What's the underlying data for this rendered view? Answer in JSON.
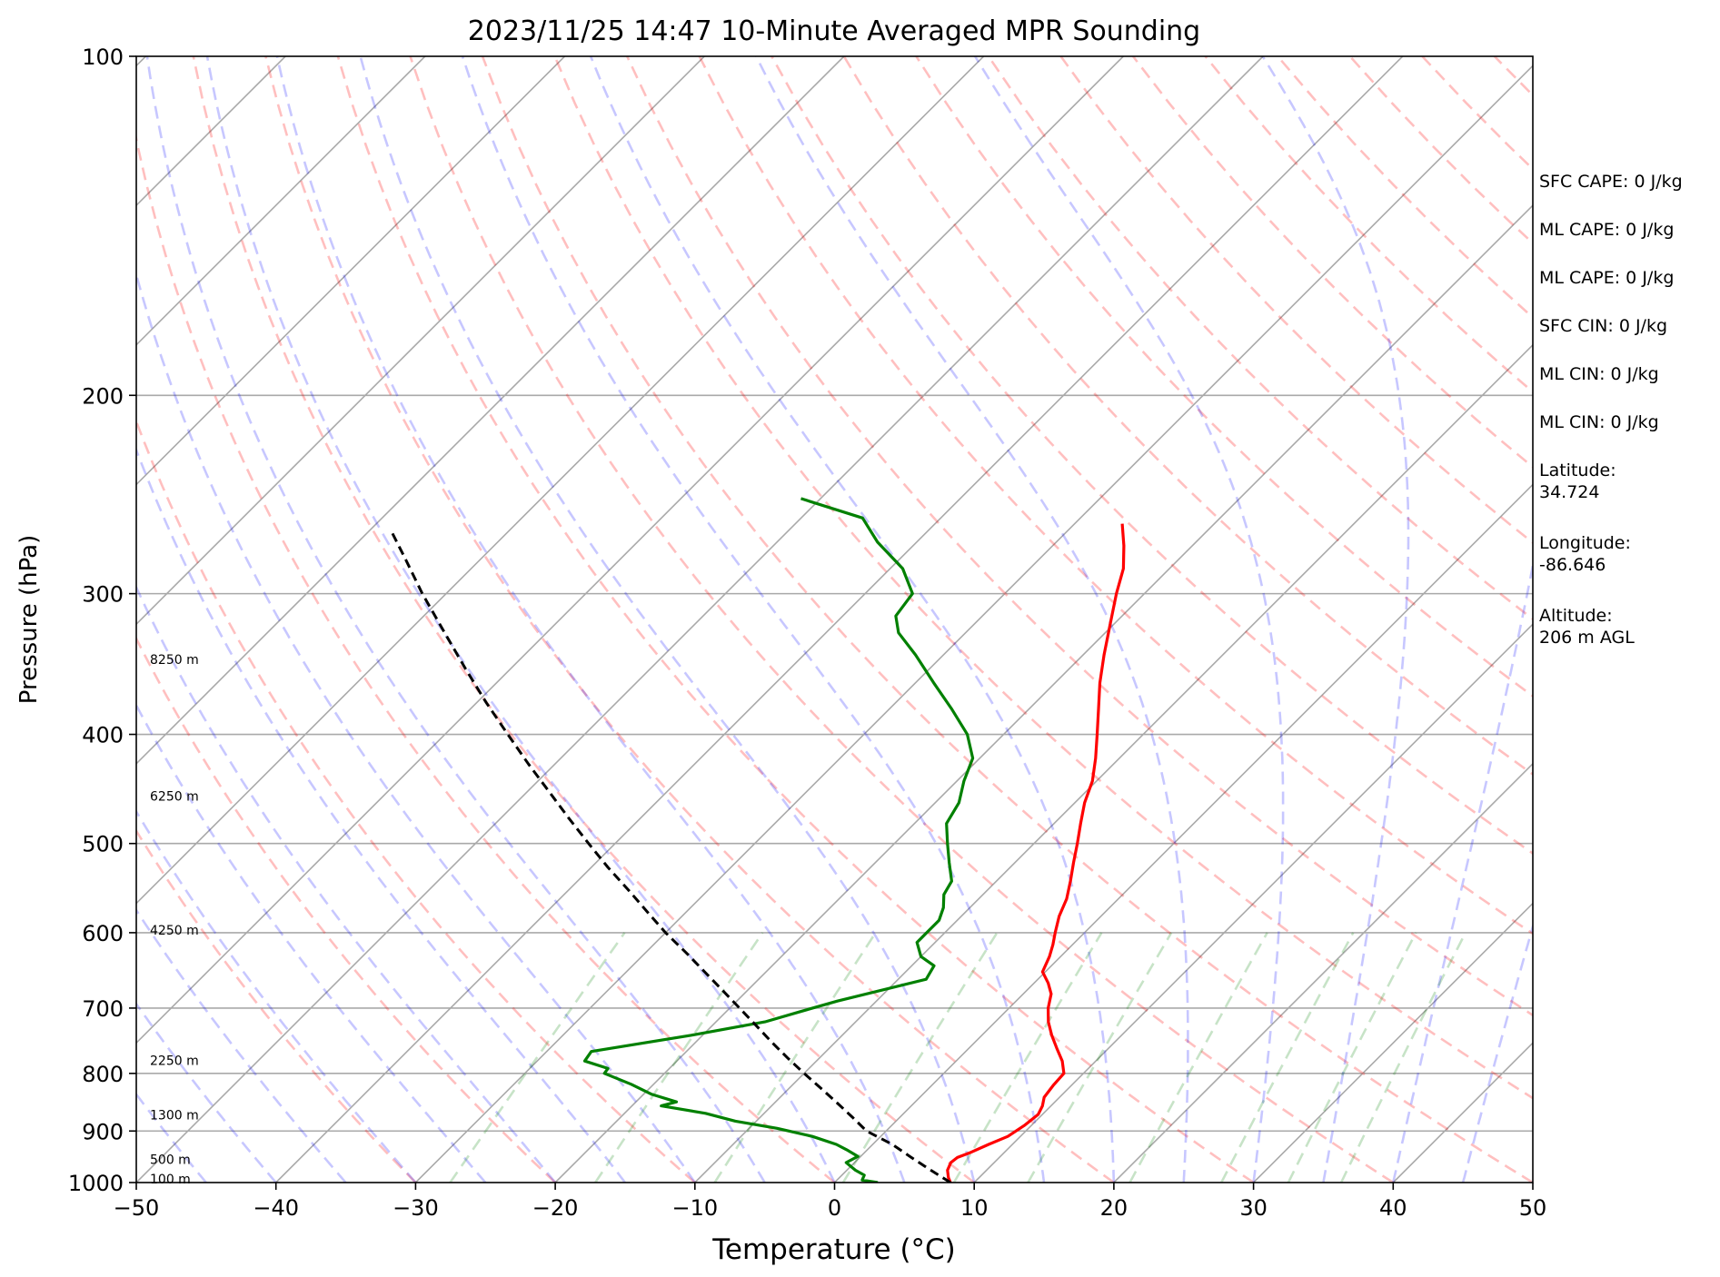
{
  "chart_data": {
    "type": "line",
    "title": "2023/11/25 14:47 10-Minute Averaged MPR Sounding",
    "xlabel": "Temperature (°C)",
    "ylabel": "Pressure (hPa)",
    "xlim": [
      -50,
      50
    ],
    "ylim": [
      1000,
      100
    ],
    "y_scale": "log",
    "skew": "skew-T (45° isotherms)",
    "x_ticks": [
      "−50",
      "−40",
      "−30",
      "−20",
      "−10",
      "0",
      "10",
      "20",
      "30",
      "40",
      "50"
    ],
    "x_tick_values": [
      -50,
      -40,
      -30,
      -20,
      -10,
      0,
      10,
      20,
      30,
      40,
      50
    ],
    "y_ticks": [
      "1000",
      "900",
      "800",
      "700",
      "600",
      "500",
      "400",
      "300",
      "200",
      "100"
    ],
    "y_tick_values": [
      1000,
      900,
      800,
      700,
      600,
      500,
      400,
      300,
      200,
      100
    ],
    "grid": true,
    "series": [
      {
        "name": "",
        "color": "#ff0000",
        "points": [
          [
            1000,
            8.3
          ],
          [
            990,
            7.8
          ],
          [
            975,
            7.2
          ],
          [
            960,
            6.9
          ],
          [
            950,
            7.0
          ],
          [
            940,
            7.6
          ],
          [
            925,
            8.3
          ],
          [
            910,
            9.1
          ],
          [
            890,
            9.5
          ],
          [
            870,
            9.7
          ],
          [
            855,
            9.4
          ],
          [
            840,
            8.9
          ],
          [
            820,
            8.7
          ],
          [
            800,
            8.6
          ],
          [
            780,
            7.6
          ],
          [
            760,
            6.3
          ],
          [
            740,
            5.0
          ],
          [
            720,
            3.8
          ],
          [
            700,
            2.8
          ],
          [
            680,
            2.0
          ],
          [
            665,
            1.0
          ],
          [
            650,
            -0.2
          ],
          [
            630,
            -0.8
          ],
          [
            615,
            -1.4
          ],
          [
            600,
            -2.1
          ],
          [
            580,
            -3.0
          ],
          [
            560,
            -3.7
          ],
          [
            540,
            -4.7
          ],
          [
            520,
            -5.8
          ],
          [
            500,
            -6.9
          ],
          [
            480,
            -8.1
          ],
          [
            460,
            -9.3
          ],
          [
            440,
            -10.3
          ],
          [
            420,
            -11.7
          ],
          [
            400,
            -13.3
          ],
          [
            380,
            -15.0
          ],
          [
            360,
            -16.8
          ],
          [
            340,
            -18.5
          ],
          [
            320,
            -20.2
          ],
          [
            300,
            -22.0
          ],
          [
            285,
            -23.3
          ],
          [
            272,
            -24.9
          ],
          [
            260,
            -26.6
          ]
        ]
      },
      {
        "name": "",
        "color": "#008000",
        "points": [
          [
            1000,
            3.1
          ],
          [
            995,
            1.8
          ],
          [
            985,
            1.6
          ],
          [
            975,
            0.6
          ],
          [
            960,
            -0.6
          ],
          [
            948,
            -0.2
          ],
          [
            935,
            -1.5
          ],
          [
            925,
            -2.6
          ],
          [
            910,
            -4.9
          ],
          [
            895,
            -8.0
          ],
          [
            882,
            -11.5
          ],
          [
            868,
            -14.2
          ],
          [
            855,
            -17.9
          ],
          [
            848,
            -17.1
          ],
          [
            835,
            -19.4
          ],
          [
            818,
            -21.6
          ],
          [
            800,
            -24.3
          ],
          [
            792,
            -24.4
          ],
          [
            780,
            -26.6
          ],
          [
            765,
            -26.8
          ],
          [
            740,
            -20.8
          ],
          [
            720,
            -16.5
          ],
          [
            705,
            -14.7
          ],
          [
            690,
            -12.8
          ],
          [
            660,
            -8.0
          ],
          [
            642,
            -8.4
          ],
          [
            630,
            -10.0
          ],
          [
            612,
            -11.3
          ],
          [
            600,
            -11.3
          ],
          [
            585,
            -11.3
          ],
          [
            570,
            -11.9
          ],
          [
            555,
            -12.8
          ],
          [
            540,
            -13.2
          ],
          [
            520,
            -14.7
          ],
          [
            500,
            -16.2
          ],
          [
            480,
            -17.7
          ],
          [
            460,
            -18.3
          ],
          [
            440,
            -19.5
          ],
          [
            420,
            -20.5
          ],
          [
            400,
            -22.6
          ],
          [
            380,
            -25.5
          ],
          [
            360,
            -28.7
          ],
          [
            340,
            -32.0
          ],
          [
            325,
            -34.8
          ],
          [
            314,
            -36.2
          ],
          [
            300,
            -36.6
          ],
          [
            285,
            -39.1
          ],
          [
            270,
            -42.8
          ],
          [
            257,
            -45.6
          ],
          [
            247,
            -51.4
          ]
        ]
      },
      {
        "name": "",
        "color": "#000000",
        "dashed": true,
        "points": [
          [
            1000,
            8.3
          ],
          [
            975,
            6.0
          ],
          [
            950,
            3.7
          ],
          [
            925,
            1.4
          ],
          [
            900,
            -1.4
          ],
          [
            875,
            -3.4
          ],
          [
            850,
            -5.5
          ],
          [
            825,
            -7.7
          ],
          [
            800,
            -10.0
          ],
          [
            775,
            -12.3
          ],
          [
            750,
            -14.6
          ],
          [
            725,
            -16.9
          ],
          [
            700,
            -19.3
          ],
          [
            675,
            -21.8
          ],
          [
            650,
            -24.4
          ],
          [
            625,
            -27.1
          ],
          [
            600,
            -30.0
          ],
          [
            575,
            -32.8
          ],
          [
            550,
            -35.7
          ],
          [
            525,
            -38.8
          ],
          [
            500,
            -41.9
          ],
          [
            475,
            -45.1
          ],
          [
            450,
            -48.4
          ],
          [
            425,
            -51.9
          ],
          [
            400,
            -55.5
          ],
          [
            375,
            -59.3
          ],
          [
            350,
            -63.2
          ],
          [
            325,
            -67.3
          ],
          [
            300,
            -71.7
          ],
          [
            280,
            -75.3
          ],
          [
            265,
            -78.2
          ]
        ]
      }
    ],
    "height_labels": [
      {
        "label": "100 m",
        "p": 993
      },
      {
        "label": "500 m",
        "p": 954
      },
      {
        "label": "1300 m",
        "p": 871
      },
      {
        "label": "2250 m",
        "p": 779
      },
      {
        "label": "4250 m",
        "p": 597
      },
      {
        "label": "6250 m",
        "p": 454
      },
      {
        "label": "8250 m",
        "p": 343
      }
    ],
    "reference_lines": {
      "dry_adiabats_color": "#ff0000",
      "moist_adiabats_color": "#0000ff",
      "mixing_ratio_color": "#008000",
      "isotherms_color": "#808080"
    }
  },
  "stats": [
    "SFC CAPE: 0 J/kg",
    "ML CAPE: 0 J/kg",
    "ML CAPE: 0 J/kg",
    "SFC CIN: 0 J/kg",
    "ML CIN: 0 J/kg",
    "ML CIN: 0 J/kg"
  ],
  "location": {
    "latitude_label": "Latitude:",
    "latitude_value": "34.724",
    "longitude_label": "Longitude:",
    "longitude_value": "-86.646",
    "altitude_label": "Altitude:",
    "altitude_value": "206 m AGL"
  }
}
